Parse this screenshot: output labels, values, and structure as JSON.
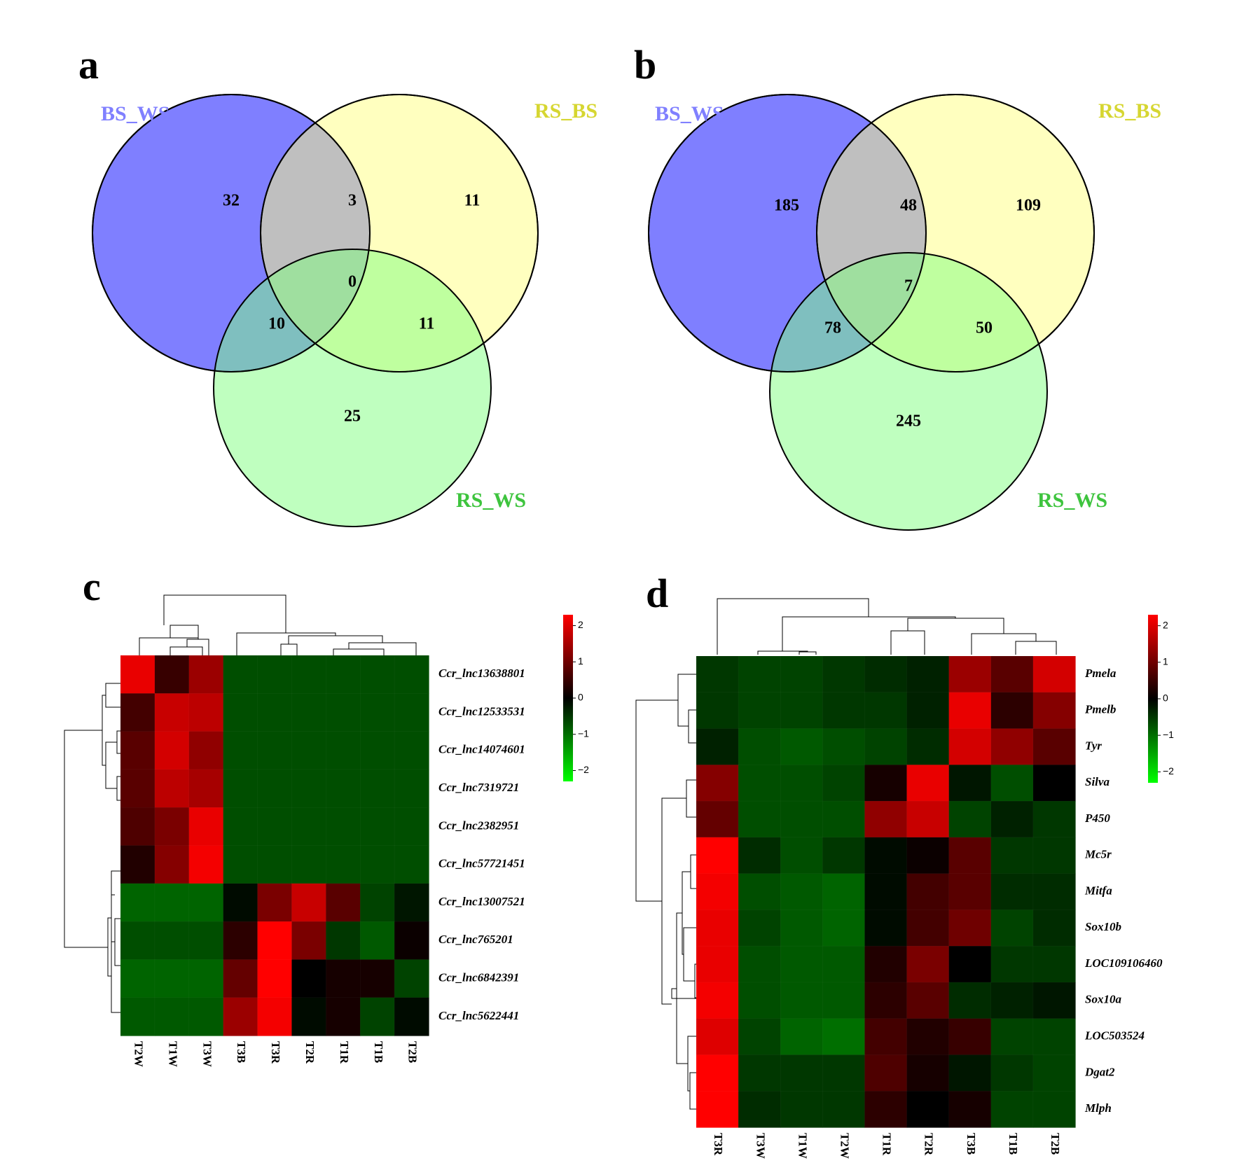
{
  "panels": {
    "a": "a",
    "b": "b",
    "c": "c",
    "d": "d"
  },
  "colors": {
    "bs_ws_fill": "#7f7fff",
    "rs_bs_fill": "#ffff80",
    "rs_ws_fill": "#80ff80",
    "bs_ws_label": "#8080ff",
    "rs_bs_label": "#d6d631",
    "rs_ws_label": "#3ec43e",
    "heat_low": "#00ff00",
    "heat_mid": "#000000",
    "heat_high": "#ff0000"
  },
  "chart_data": [
    {
      "panel": "a",
      "type": "venn",
      "sets": [
        "BS_WS",
        "RS_BS",
        "RS_WS"
      ],
      "regions": {
        "BS_WS_only": 32,
        "RS_BS_only": 11,
        "RS_WS_only": 25,
        "BS_WS__RS_BS": 3,
        "BS_WS__RS_WS": 10,
        "RS_BS__RS_WS": 11,
        "all": 0
      }
    },
    {
      "panel": "b",
      "type": "venn",
      "sets": [
        "BS_WS",
        "RS_BS",
        "RS_WS"
      ],
      "regions": {
        "BS_WS_only": 185,
        "RS_BS_only": 109,
        "RS_WS_only": 245,
        "BS_WS__RS_BS": 48,
        "BS_WS__RS_WS": 78,
        "RS_BS__RS_WS": 50,
        "all": 7
      }
    },
    {
      "panel": "c",
      "type": "heatmap",
      "columns": [
        "T2W",
        "T1W",
        "T3W",
        "T3B",
        "T3R",
        "T2R",
        "T1R",
        "T1B",
        "T2B"
      ],
      "rows": [
        "Ccr_lnc13638801",
        "Ccr_lnc12533531",
        "Ccr_lnc14074601",
        "Ccr_lnc7319721",
        "Ccr_lnc2382951",
        "Ccr_lnc57721451",
        "Ccr_lnc13007521",
        "Ccr_lnc765201",
        "Ccr_lnc6842391",
        "Ccr_lnc5622441"
      ],
      "values": [
        [
          2.1,
          0.5,
          1.4,
          -0.7,
          -0.7,
          -0.7,
          -0.7,
          -0.7,
          -0.7
        ],
        [
          0.6,
          1.8,
          1.7,
          -0.7,
          -0.7,
          -0.7,
          -0.7,
          -0.7,
          -0.7
        ],
        [
          0.8,
          1.9,
          1.3,
          -0.7,
          -0.7,
          -0.7,
          -0.7,
          -0.7,
          -0.7
        ],
        [
          0.8,
          1.7,
          1.5,
          -0.7,
          -0.7,
          -0.7,
          -0.7,
          -0.7,
          -0.7
        ],
        [
          0.7,
          1.1,
          2.1,
          -0.7,
          -0.7,
          -0.7,
          -0.7,
          -0.7,
          -0.7
        ],
        [
          0.3,
          1.2,
          2.2,
          -0.7,
          -0.7,
          -0.7,
          -0.7,
          -0.7,
          -0.7
        ],
        [
          -0.9,
          -0.9,
          -0.9,
          -0.1,
          1.1,
          1.8,
          0.8,
          -0.6,
          -0.2
        ],
        [
          -0.7,
          -0.7,
          -0.7,
          0.4,
          2.3,
          1.1,
          -0.5,
          -0.8,
          0.1
        ],
        [
          -0.9,
          -0.9,
          -0.9,
          0.9,
          2.3,
          0.0,
          0.2,
          0.2,
          -0.6
        ],
        [
          -0.8,
          -0.8,
          -0.8,
          1.4,
          2.2,
          -0.1,
          0.2,
          -0.6,
          -0.1
        ]
      ],
      "colorbar": {
        "ticks": [
          2,
          1,
          0,
          -1,
          -2
        ],
        "tick_labels": [
          "2",
          "1",
          "0",
          "−1",
          "−2"
        ],
        "range": [
          -2.3,
          2.3
        ]
      }
    },
    {
      "panel": "d",
      "type": "heatmap",
      "columns": [
        "T3R",
        "T3W",
        "T1W",
        "T2W",
        "T1R",
        "T2R",
        "T3B",
        "T1B",
        "T2B"
      ],
      "rows": [
        "Pmela",
        "Pmelb",
        "Tyr",
        "Silva",
        "P450",
        "Mc5r",
        "Mitfa",
        "Sox10b",
        "LOC109106460",
        "Sox10a",
        "LOC503524",
        "Dgat2",
        "Mlph"
      ],
      "values": [
        [
          -0.5,
          -0.6,
          -0.6,
          -0.5,
          -0.4,
          -0.3,
          1.4,
          0.8,
          1.9
        ],
        [
          -0.5,
          -0.6,
          -0.6,
          -0.5,
          -0.5,
          -0.3,
          2.1,
          0.4,
          1.2
        ],
        [
          -0.3,
          -0.7,
          -0.8,
          -0.7,
          -0.6,
          -0.4,
          1.9,
          1.3,
          0.8
        ],
        [
          1.2,
          -0.7,
          -0.7,
          -0.6,
          0.2,
          2.1,
          -0.2,
          -0.7,
          0.0
        ],
        [
          0.9,
          -0.7,
          -0.7,
          -0.7,
          1.3,
          1.8,
          -0.6,
          -0.3,
          -0.5
        ],
        [
          2.4,
          -0.4,
          -0.7,
          -0.5,
          -0.1,
          0.1,
          0.8,
          -0.5,
          -0.5
        ],
        [
          2.2,
          -0.7,
          -0.8,
          -0.9,
          -0.1,
          0.6,
          0.8,
          -0.4,
          -0.4
        ],
        [
          2.1,
          -0.6,
          -0.8,
          -0.9,
          -0.1,
          0.6,
          1.0,
          -0.6,
          -0.4
        ],
        [
          2.1,
          -0.7,
          -0.8,
          -0.8,
          0.3,
          1.1,
          0.0,
          -0.5,
          -0.5
        ],
        [
          2.2,
          -0.7,
          -0.8,
          -0.8,
          0.4,
          0.8,
          -0.4,
          -0.3,
          -0.2
        ],
        [
          2.0,
          -0.6,
          -0.9,
          -1.0,
          0.6,
          0.3,
          0.5,
          -0.6,
          -0.6
        ],
        [
          2.3,
          -0.5,
          -0.5,
          -0.5,
          0.7,
          0.2,
          -0.2,
          -0.5,
          -0.6
        ],
        [
          2.4,
          -0.4,
          -0.5,
          -0.5,
          0.4,
          0.0,
          0.2,
          -0.6,
          -0.6
        ]
      ],
      "colorbar": {
        "ticks": [
          2,
          1,
          0,
          -1,
          -2
        ],
        "tick_labels": [
          "2",
          "1",
          "0",
          "−1",
          "−2"
        ],
        "range": [
          -2.3,
          2.3
        ]
      }
    }
  ]
}
